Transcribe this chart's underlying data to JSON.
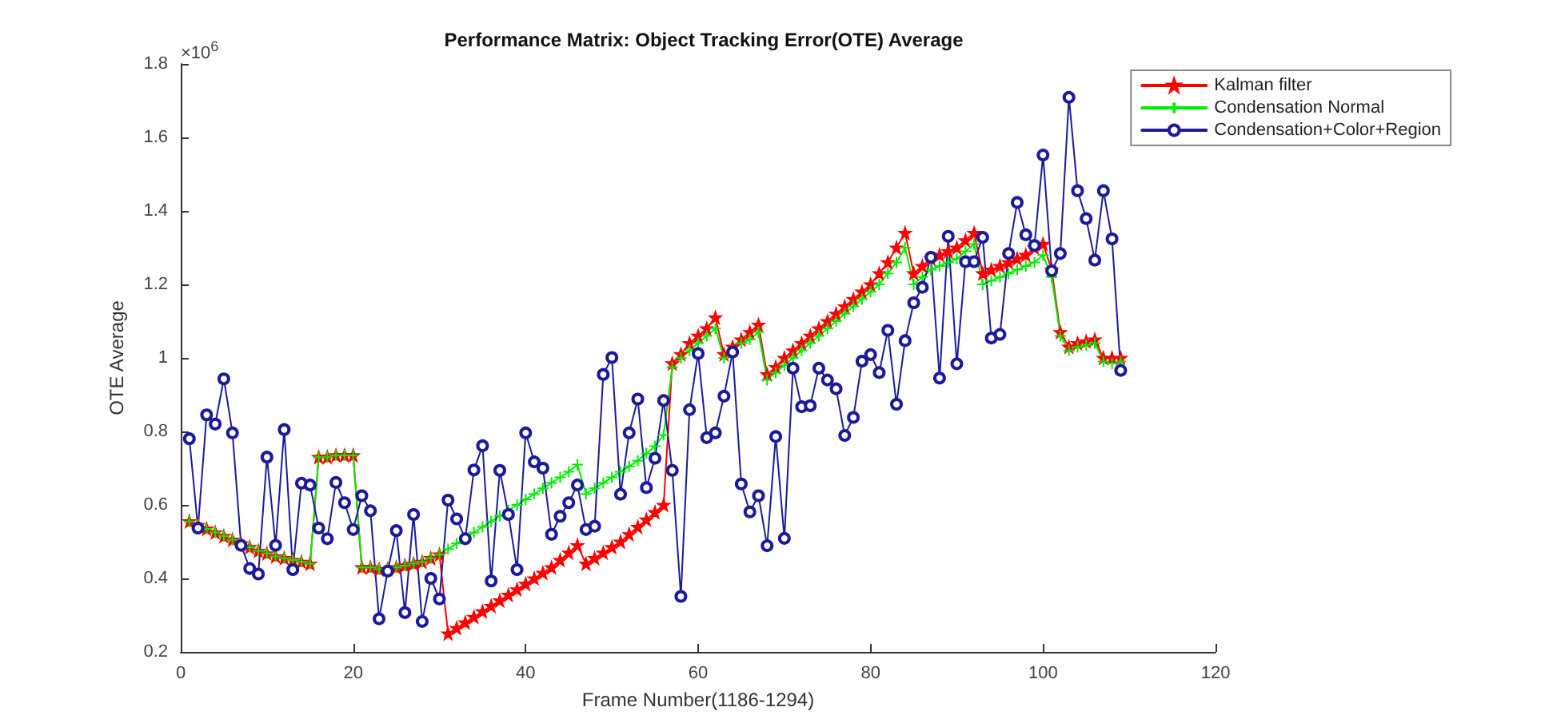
{
  "chart_data": {
    "type": "line",
    "title": "Performance Matrix: Object Tracking Error(OTE) Average",
    "xlabel": "Frame Number(1186-1294)",
    "ylabel": "OTE Average",
    "annotations": [
      "×10$^{6}$"
    ],
    "x": [
      1,
      2,
      3,
      4,
      5,
      6,
      7,
      8,
      9,
      10,
      11,
      12,
      13,
      14,
      15,
      16,
      17,
      18,
      19,
      20,
      21,
      22,
      23,
      24,
      25,
      26,
      27,
      28,
      29,
      30,
      31,
      32,
      33,
      34,
      35,
      36,
      37,
      38,
      39,
      40,
      41,
      42,
      43,
      44,
      45,
      46,
      47,
      48,
      49,
      50,
      51,
      52,
      53,
      54,
      55,
      56,
      57,
      58,
      59,
      60,
      61,
      62,
      63,
      64,
      65,
      66,
      67,
      68,
      69,
      70,
      71,
      72,
      73,
      74,
      75,
      76,
      77,
      78,
      79,
      80,
      81,
      82,
      83,
      84,
      85,
      86,
      87,
      88,
      89,
      90,
      91,
      92,
      93,
      94,
      95,
      96,
      97,
      98,
      99,
      100,
      101,
      102,
      103,
      104,
      105,
      106,
      107,
      108,
      109
    ],
    "series": [
      {
        "name": "Kalman filter",
        "color": "#ff0000",
        "marker": "star",
        "values": [
          0.555,
          0.545,
          0.535,
          0.525,
          0.515,
          0.505,
          0.495,
          0.485,
          0.475,
          0.468,
          0.46,
          0.455,
          0.45,
          0.445,
          0.44,
          0.73,
          0.73,
          0.735,
          0.735,
          0.735,
          0.43,
          0.43,
          0.425,
          0.425,
          0.43,
          0.435,
          0.44,
          0.445,
          0.455,
          0.465,
          0.25,
          0.265,
          0.28,
          0.295,
          0.31,
          0.325,
          0.34,
          0.355,
          0.37,
          0.385,
          0.4,
          0.415,
          0.43,
          0.45,
          0.47,
          0.49,
          0.44,
          0.455,
          0.47,
          0.485,
          0.5,
          0.52,
          0.54,
          0.56,
          0.58,
          0.6,
          0.985,
          1.01,
          1.04,
          1.06,
          1.08,
          1.11,
          1.01,
          1.03,
          1.05,
          1.07,
          1.09,
          0.955,
          0.975,
          1.0,
          1.02,
          1.04,
          1.06,
          1.08,
          1.1,
          1.12,
          1.14,
          1.16,
          1.18,
          1.2,
          1.23,
          1.26,
          1.3,
          1.34,
          1.23,
          1.25,
          1.27,
          1.28,
          1.29,
          1.3,
          1.32,
          1.34,
          1.23,
          1.24,
          1.25,
          1.26,
          1.27,
          1.28,
          1.3,
          1.31,
          1.24,
          1.07,
          1.03,
          1.04,
          1.045,
          1.05,
          1.0,
          1.0,
          1.0
        ]
      },
      {
        "name": "Condensation Normal",
        "color": "#00ee00",
        "marker": "cross",
        "values": [
          0.555,
          0.545,
          0.535,
          0.525,
          0.515,
          0.505,
          0.495,
          0.485,
          0.475,
          0.468,
          0.46,
          0.455,
          0.45,
          0.445,
          0.44,
          0.73,
          0.73,
          0.735,
          0.735,
          0.735,
          0.43,
          0.43,
          0.425,
          0.425,
          0.43,
          0.435,
          0.44,
          0.445,
          0.455,
          0.465,
          0.48,
          0.495,
          0.51,
          0.525,
          0.54,
          0.555,
          0.57,
          0.585,
          0.6,
          0.615,
          0.63,
          0.645,
          0.66,
          0.675,
          0.69,
          0.71,
          0.63,
          0.645,
          0.66,
          0.675,
          0.69,
          0.705,
          0.72,
          0.74,
          0.76,
          0.79,
          0.975,
          1.0,
          1.02,
          1.04,
          1.06,
          1.08,
          1.0,
          1.02,
          1.04,
          1.05,
          1.07,
          0.94,
          0.96,
          0.98,
          1.0,
          1.02,
          1.04,
          1.06,
          1.08,
          1.1,
          1.12,
          1.14,
          1.16,
          1.18,
          1.2,
          1.23,
          1.26,
          1.3,
          1.2,
          1.22,
          1.24,
          1.25,
          1.26,
          1.27,
          1.29,
          1.31,
          1.2,
          1.21,
          1.22,
          1.23,
          1.24,
          1.25,
          1.26,
          1.28,
          1.22,
          1.06,
          1.02,
          1.03,
          1.035,
          1.04,
          0.99,
          0.985,
          0.99
        ]
      },
      {
        "name": "Condensation+Color+Region",
        "color": "#1a1a9a",
        "marker": "circle",
        "values": [
          0.78,
          0.537,
          0.845,
          0.82,
          0.943,
          0.796,
          0.49,
          0.427,
          0.412,
          0.73,
          0.49,
          0.805,
          0.424,
          0.659,
          0.654,
          0.537,
          0.508,
          0.661,
          0.606,
          0.533,
          0.625,
          0.584,
          0.29,
          0.42,
          0.53,
          0.307,
          0.574,
          0.283,
          0.4,
          0.344,
          0.613,
          0.562,
          0.508,
          0.695,
          0.761,
          0.393,
          0.694,
          0.574,
          0.424,
          0.796,
          0.717,
          0.7,
          0.52,
          0.569,
          0.606,
          0.654,
          0.533,
          0.542,
          0.955,
          1.001,
          0.629,
          0.796,
          0.888,
          0.647,
          0.727,
          0.884,
          0.694,
          0.351,
          0.859,
          1.012,
          0.783,
          0.796,
          0.896,
          1.016,
          0.657,
          0.581,
          0.625,
          0.489,
          0.786,
          0.509,
          0.972,
          0.867,
          0.87,
          0.972,
          0.94,
          0.916,
          0.789,
          0.838,
          0.991,
          1.009,
          0.96,
          1.075,
          0.874,
          1.047,
          1.15,
          1.192,
          1.274,
          0.945,
          1.331,
          0.984,
          1.262,
          1.262,
          1.328,
          1.054,
          1.064,
          1.284,
          1.423,
          1.335,
          1.306,
          1.552,
          1.237,
          1.284,
          1.709,
          1.455,
          1.379,
          1.266,
          1.455,
          1.324,
          0.966
        ]
      }
    ],
    "xlim": [
      0,
      120
    ],
    "xticks": [
      0,
      20,
      40,
      60,
      80,
      100,
      120
    ],
    "ylim": [
      0.2,
      1.8
    ],
    "yticks": [
      0.2,
      0.4,
      0.6,
      0.8,
      1,
      1.2,
      1.4,
      1.6,
      1.8
    ],
    "grid": false,
    "legend": "top right",
    "line_style": "solid"
  }
}
